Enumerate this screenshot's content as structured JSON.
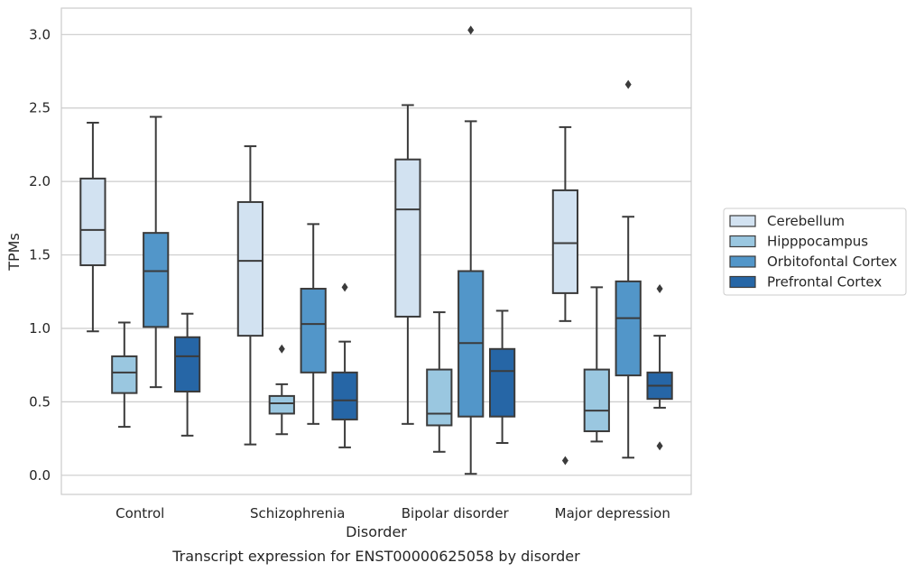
{
  "chart_data": {
    "type": "box",
    "xlabel": "Disorder",
    "ylabel": "TPMs",
    "caption": "Transcript expression for ENST00000625058 by disorder",
    "ylim": [
      -0.13,
      3.18
    ],
    "yticks": [
      "0.0",
      "0.5",
      "1.0",
      "1.5",
      "2.0",
      "2.5",
      "3.0"
    ],
    "grid": "horizontal",
    "legend_position": "right",
    "categories": [
      "Control",
      "Schizophrenia",
      "Bipolar disorder",
      "Major depression"
    ],
    "series": [
      {
        "name": "Cerebellum",
        "color": "#d2e2f1",
        "boxes": [
          {
            "whisker_low": 0.98,
            "q1": 1.43,
            "median": 1.67,
            "q3": 2.02,
            "whisker_high": 2.4,
            "outliers": []
          },
          {
            "whisker_low": 0.21,
            "q1": 0.95,
            "median": 1.46,
            "q3": 1.86,
            "whisker_high": 2.24,
            "outliers": []
          },
          {
            "whisker_low": 0.35,
            "q1": 1.08,
            "median": 1.81,
            "q3": 2.15,
            "whisker_high": 2.52,
            "outliers": []
          },
          {
            "whisker_low": 1.05,
            "q1": 1.24,
            "median": 1.58,
            "q3": 1.94,
            "whisker_high": 2.37,
            "outliers": [
              0.1
            ]
          }
        ]
      },
      {
        "name": "Hipppocampus",
        "color": "#9ac7e0",
        "boxes": [
          {
            "whisker_low": 0.33,
            "q1": 0.56,
            "median": 0.7,
            "q3": 0.81,
            "whisker_high": 1.04,
            "outliers": []
          },
          {
            "whisker_low": 0.28,
            "q1": 0.42,
            "median": 0.49,
            "q3": 0.54,
            "whisker_high": 0.62,
            "outliers": [
              0.86
            ]
          },
          {
            "whisker_low": 0.16,
            "q1": 0.34,
            "median": 0.42,
            "q3": 0.72,
            "whisker_high": 1.11,
            "outliers": []
          },
          {
            "whisker_low": 0.23,
            "q1": 0.3,
            "median": 0.44,
            "q3": 0.72,
            "whisker_high": 1.28,
            "outliers": []
          }
        ]
      },
      {
        "name": "Orbitofontal Cortex",
        "color": "#5296c9",
        "boxes": [
          {
            "whisker_low": 0.6,
            "q1": 1.01,
            "median": 1.39,
            "q3": 1.65,
            "whisker_high": 2.44,
            "outliers": []
          },
          {
            "whisker_low": 0.35,
            "q1": 0.7,
            "median": 1.03,
            "q3": 1.27,
            "whisker_high": 1.71,
            "outliers": []
          },
          {
            "whisker_low": 0.01,
            "q1": 0.4,
            "median": 0.9,
            "q3": 1.39,
            "whisker_high": 2.41,
            "outliers": [
              3.03
            ]
          },
          {
            "whisker_low": 0.12,
            "q1": 0.68,
            "median": 1.07,
            "q3": 1.32,
            "whisker_high": 1.76,
            "outliers": [
              2.66
            ]
          }
        ]
      },
      {
        "name": "Prefrontal Cortex",
        "color": "#2666a6",
        "boxes": [
          {
            "whisker_low": 0.27,
            "q1": 0.57,
            "median": 0.81,
            "q3": 0.94,
            "whisker_high": 1.1,
            "outliers": []
          },
          {
            "whisker_low": 0.19,
            "q1": 0.38,
            "median": 0.51,
            "q3": 0.7,
            "whisker_high": 0.91,
            "outliers": [
              1.28
            ]
          },
          {
            "whisker_low": 0.22,
            "q1": 0.4,
            "median": 0.71,
            "q3": 0.86,
            "whisker_high": 1.12,
            "outliers": []
          },
          {
            "whisker_low": 0.46,
            "q1": 0.52,
            "median": 0.61,
            "q3": 0.7,
            "whisker_high": 0.95,
            "outliers": [
              1.27,
              0.2
            ]
          }
        ]
      }
    ]
  }
}
